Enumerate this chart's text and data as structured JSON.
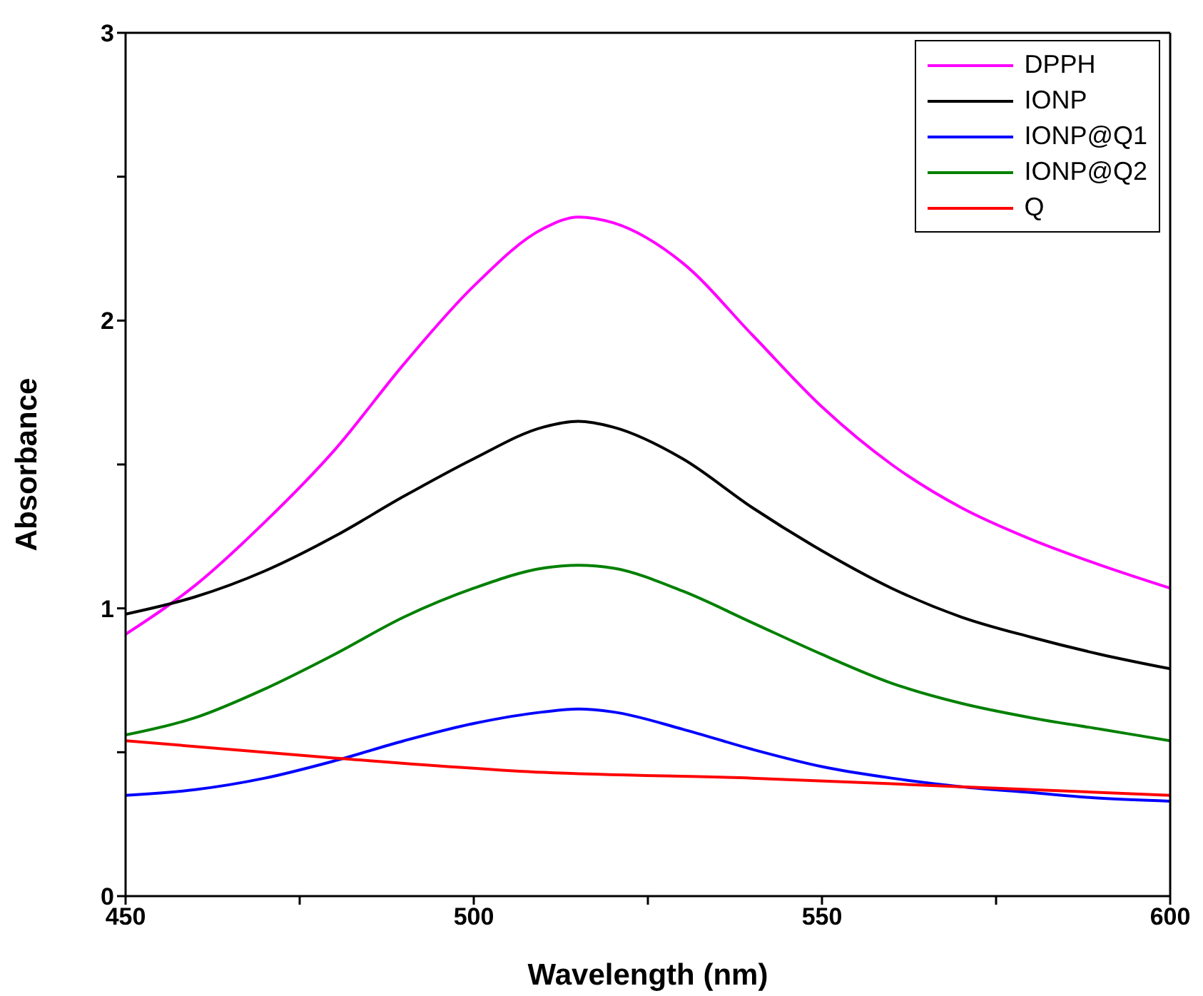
{
  "chart_data": {
    "type": "line",
    "xlabel": "Wavelength (nm)",
    "ylabel": "Absorbance",
    "xlim": [
      450,
      600
    ],
    "ylim": [
      0,
      3
    ],
    "xticks": [
      450,
      {
        "value": 475,
        "label": null
      },
      500,
      {
        "value": 525,
        "label": null
      },
      550,
      {
        "value": 575,
        "label": null
      },
      600
    ],
    "yticks": [
      0,
      {
        "value": 0.5,
        "label": null
      },
      1,
      {
        "value": 1.5,
        "label": null
      },
      2,
      {
        "value": 2.5,
        "label": null
      },
      3
    ],
    "legend": "top right",
    "marker": "none",
    "line_style": "solid",
    "series": [
      {
        "name": "DPPH",
        "color": "#ff00ff",
        "x": [
          450,
          460,
          470,
          480,
          490,
          500,
          510,
          515,
          520,
          530,
          540,
          550,
          560,
          570,
          580,
          590,
          600
        ],
        "values": [
          0.91,
          1.08,
          1.3,
          1.55,
          1.85,
          2.12,
          2.32,
          2.36,
          2.34,
          2.2,
          1.95,
          1.7,
          1.5,
          1.35,
          1.24,
          1.15,
          1.07
        ]
      },
      {
        "name": "IONP",
        "color": "#000000",
        "x": [
          450,
          460,
          470,
          480,
          490,
          500,
          510,
          515,
          520,
          530,
          540,
          550,
          560,
          570,
          580,
          590,
          600
        ],
        "values": [
          0.98,
          1.04,
          1.13,
          1.25,
          1.39,
          1.52,
          1.63,
          1.65,
          1.63,
          1.52,
          1.35,
          1.2,
          1.07,
          0.97,
          0.9,
          0.84,
          0.79
        ]
      },
      {
        "name": "IONP@Q1",
        "color": "#0000ff",
        "x": [
          450,
          460,
          470,
          480,
          490,
          500,
          510,
          515,
          520,
          530,
          540,
          550,
          560,
          570,
          580,
          590,
          600
        ],
        "values": [
          0.35,
          0.37,
          0.41,
          0.47,
          0.54,
          0.6,
          0.64,
          0.65,
          0.64,
          0.58,
          0.51,
          0.45,
          0.41,
          0.38,
          0.36,
          0.34,
          0.33
        ]
      },
      {
        "name": "IONP@Q2",
        "color": "#008000",
        "x": [
          450,
          460,
          470,
          480,
          490,
          500,
          510,
          515,
          520,
          530,
          540,
          550,
          560,
          570,
          580,
          590,
          600
        ],
        "values": [
          0.56,
          0.62,
          0.72,
          0.84,
          0.97,
          1.07,
          1.14,
          1.15,
          1.14,
          1.06,
          0.95,
          0.84,
          0.74,
          0.67,
          0.62,
          0.58,
          0.54
        ]
      },
      {
        "name": "Q",
        "color": "#ff0000",
        "x": [
          450,
          480,
          510,
          540,
          570,
          600
        ],
        "values": [
          0.54,
          0.48,
          0.43,
          0.41,
          0.38,
          0.35
        ]
      }
    ]
  }
}
